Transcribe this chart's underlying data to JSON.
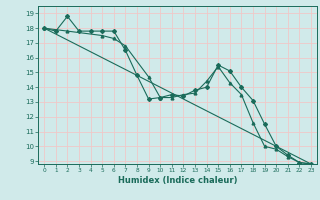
{
  "xlabel": "Humidex (Indice chaleur)",
  "bg_color": "#d0eaea",
  "grid_color": "#f0c8c8",
  "line_color": "#1a6b5a",
  "xlim": [
    -0.5,
    23.5
  ],
  "ylim": [
    8.8,
    19.5
  ],
  "xticks": [
    0,
    1,
    2,
    3,
    4,
    5,
    6,
    7,
    8,
    9,
    10,
    11,
    12,
    13,
    14,
    15,
    16,
    17,
    18,
    19,
    20,
    21,
    22,
    23
  ],
  "yticks": [
    9,
    10,
    11,
    12,
    13,
    14,
    15,
    16,
    17,
    18,
    19
  ],
  "line1_x": [
    0,
    1,
    2,
    3,
    4,
    5,
    6,
    7,
    8,
    9,
    10,
    11,
    12,
    13,
    14,
    15,
    16,
    17,
    18,
    19,
    20,
    21,
    22,
    23
  ],
  "line1_y": [
    18.0,
    17.8,
    18.8,
    17.8,
    17.8,
    17.8,
    17.8,
    16.5,
    14.8,
    13.2,
    13.3,
    13.5,
    13.4,
    13.8,
    14.0,
    15.5,
    15.1,
    14.0,
    13.1,
    11.5,
    10.0,
    9.4,
    8.9,
    8.8
  ],
  "line2_x": [
    0,
    2,
    5,
    6,
    7,
    9,
    10,
    11,
    12,
    13,
    14,
    15,
    16,
    17,
    18,
    19,
    20,
    21,
    22,
    23
  ],
  "line2_y": [
    18.0,
    17.8,
    17.5,
    17.3,
    16.8,
    14.7,
    13.3,
    13.3,
    13.5,
    13.6,
    14.4,
    15.4,
    14.3,
    13.5,
    11.6,
    10.0,
    9.8,
    9.3,
    8.9,
    8.8
  ],
  "trend_x": [
    0,
    23
  ],
  "trend_y": [
    18.0,
    8.8
  ]
}
